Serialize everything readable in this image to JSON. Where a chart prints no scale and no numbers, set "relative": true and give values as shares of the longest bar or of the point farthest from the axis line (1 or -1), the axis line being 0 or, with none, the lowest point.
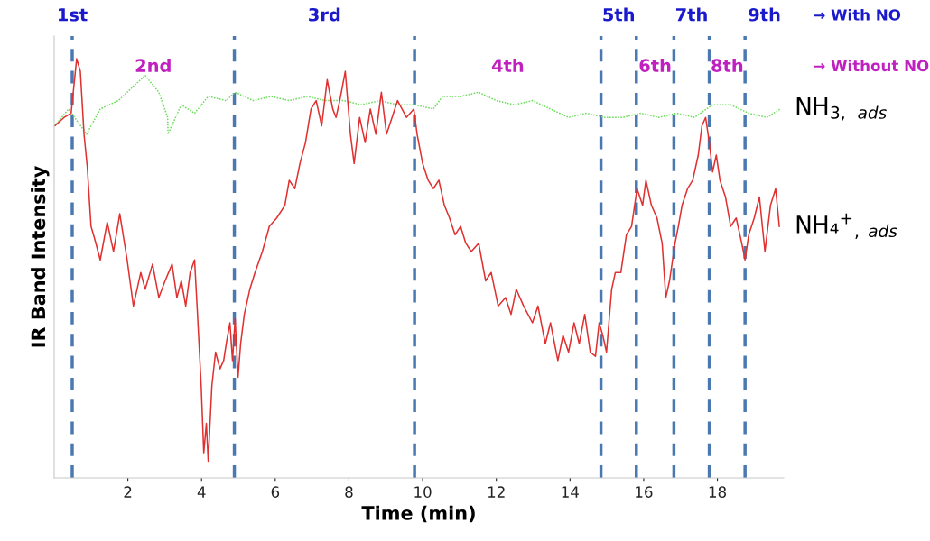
{
  "chart_data": {
    "type": "line",
    "relative": true,
    "xlabel": "Time (min)",
    "ylabel": "IR Band Intensity",
    "xlim": [
      0,
      19.8
    ],
    "xticks": [
      2,
      4,
      6,
      8,
      10,
      12,
      14,
      16,
      18
    ],
    "grid": false,
    "legend": false,
    "tick_labels": "x",
    "series": [
      {
        "name": "NH$_{3,}$ $_{ads}$",
        "color": "#66dd55",
        "line_style": "dotted",
        "x": [
          0.02,
          0.39,
          0.88,
          1.25,
          1.74,
          2.22,
          2.47,
          2.84,
          3.08,
          3.09,
          3.45,
          3.81,
          4.18,
          4.67,
          4.91,
          5.4,
          5.89,
          6.38,
          6.87,
          7.36,
          7.85,
          8.34,
          8.83,
          9.32,
          9.8,
          10.29,
          10.54,
          11.03,
          11.52,
          12.0,
          12.49,
          12.98,
          13.47,
          13.96,
          14.45,
          14.94,
          15.43,
          15.92,
          16.41,
          16.89,
          17.38,
          17.87,
          18.36,
          18.85,
          19.34,
          19.71
        ],
        "values": [
          0.84,
          0.88,
          0.82,
          0.88,
          0.9,
          0.94,
          0.96,
          0.92,
          0.86,
          0.82,
          0.89,
          0.87,
          0.91,
          0.9,
          0.92,
          0.9,
          0.91,
          0.9,
          0.91,
          0.9,
          0.9,
          0.89,
          0.9,
          0.89,
          0.89,
          0.88,
          0.91,
          0.91,
          0.92,
          0.9,
          0.89,
          0.9,
          0.88,
          0.86,
          0.87,
          0.86,
          0.86,
          0.87,
          0.86,
          0.87,
          0.86,
          0.89,
          0.89,
          0.87,
          0.86,
          0.88
        ]
      },
      {
        "name": "NH₄$^{+}$$_{,}$ $_{ads}$",
        "color": "#e03030",
        "line_style": "solid",
        "x": [
          0.02,
          0.27,
          0.46,
          0.61,
          0.71,
          0.81,
          0.9,
          1.0,
          1.1,
          1.25,
          1.44,
          1.61,
          1.78,
          1.98,
          2.15,
          2.35,
          2.47,
          2.67,
          2.84,
          3.01,
          3.2,
          3.33,
          3.45,
          3.57,
          3.69,
          3.81,
          3.89,
          3.99,
          4.06,
          4.13,
          4.18,
          4.28,
          4.38,
          4.5,
          4.6,
          4.67,
          4.77,
          4.84,
          4.91,
          4.99,
          5.06,
          5.16,
          5.31,
          5.45,
          5.65,
          5.84,
          6.04,
          6.26,
          6.38,
          6.53,
          6.67,
          6.82,
          6.97,
          7.11,
          7.26,
          7.41,
          7.56,
          7.65,
          7.75,
          7.9,
          8.04,
          8.14,
          8.29,
          8.44,
          8.58,
          8.73,
          8.88,
          9.02,
          9.17,
          9.32,
          9.56,
          9.76,
          9.85,
          10.0,
          10.15,
          10.29,
          10.44,
          10.59,
          10.73,
          10.88,
          11.03,
          11.17,
          11.32,
          11.52,
          11.71,
          11.86,
          12.05,
          12.25,
          12.4,
          12.54,
          12.74,
          12.98,
          13.13,
          13.33,
          13.47,
          13.67,
          13.81,
          13.96,
          14.11,
          14.25,
          14.4,
          14.55,
          14.69,
          14.79,
          14.89,
          14.99,
          15.13,
          15.23,
          15.38,
          15.53,
          15.67,
          15.82,
          15.97,
          16.06,
          16.21,
          16.36,
          16.5,
          16.6,
          16.7,
          16.85,
          16.94,
          17.04,
          17.19,
          17.33,
          17.48,
          17.58,
          17.68,
          17.78,
          17.87,
          17.97,
          18.07,
          18.22,
          18.36,
          18.51,
          18.66,
          18.75,
          18.85,
          19.0,
          19.14,
          19.29,
          19.44,
          19.58,
          19.68
        ],
        "values": [
          0.84,
          0.86,
          0.87,
          1.0,
          0.97,
          0.82,
          0.74,
          0.6,
          0.57,
          0.52,
          0.61,
          0.54,
          0.63,
          0.52,
          0.41,
          0.49,
          0.45,
          0.51,
          0.43,
          0.47,
          0.51,
          0.43,
          0.47,
          0.41,
          0.49,
          0.52,
          0.39,
          0.22,
          0.06,
          0.13,
          0.04,
          0.22,
          0.3,
          0.26,
          0.28,
          0.32,
          0.37,
          0.28,
          0.38,
          0.24,
          0.32,
          0.39,
          0.45,
          0.49,
          0.54,
          0.6,
          0.62,
          0.65,
          0.71,
          0.69,
          0.75,
          0.8,
          0.88,
          0.9,
          0.84,
          0.95,
          0.88,
          0.86,
          0.9,
          0.97,
          0.82,
          0.75,
          0.86,
          0.8,
          0.88,
          0.82,
          0.92,
          0.82,
          0.86,
          0.9,
          0.86,
          0.88,
          0.82,
          0.75,
          0.71,
          0.69,
          0.71,
          0.65,
          0.62,
          0.58,
          0.6,
          0.56,
          0.54,
          0.56,
          0.47,
          0.49,
          0.41,
          0.43,
          0.39,
          0.45,
          0.41,
          0.37,
          0.41,
          0.32,
          0.37,
          0.28,
          0.34,
          0.3,
          0.37,
          0.32,
          0.39,
          0.3,
          0.29,
          0.37,
          0.34,
          0.3,
          0.45,
          0.49,
          0.49,
          0.58,
          0.6,
          0.69,
          0.65,
          0.71,
          0.65,
          0.62,
          0.56,
          0.43,
          0.47,
          0.56,
          0.6,
          0.65,
          0.69,
          0.71,
          0.77,
          0.84,
          0.86,
          0.8,
          0.73,
          0.77,
          0.71,
          0.67,
          0.6,
          0.62,
          0.56,
          0.52,
          0.58,
          0.62,
          0.67,
          0.54,
          0.65,
          0.69,
          0.6
        ]
      }
    ],
    "ref_lines": [
      {
        "axis": "x",
        "value": 0.49,
        "color": "#4a78b0",
        "line_style": "dashed"
      },
      {
        "axis": "x",
        "value": 4.89,
        "color": "#4a78b0",
        "line_style": "dashed"
      },
      {
        "axis": "x",
        "value": 9.78,
        "color": "#4a78b0",
        "line_style": "dashed"
      },
      {
        "axis": "x",
        "value": 14.84,
        "color": "#4a78b0",
        "line_style": "dashed"
      },
      {
        "axis": "x",
        "value": 15.8,
        "color": "#4a78b0",
        "line_style": "dashed"
      },
      {
        "axis": "x",
        "value": 16.82,
        "color": "#4a78b0",
        "line_style": "dashed"
      },
      {
        "axis": "x",
        "value": 17.78,
        "color": "#4a78b0",
        "line_style": "dashed"
      },
      {
        "axis": "x",
        "value": 18.75,
        "color": "#4a78b0",
        "line_style": "dashed"
      }
    ],
    "annotations": [
      "1st",
      "2nd",
      "3rd",
      "4th",
      "5th",
      "6th",
      "7th",
      "8th",
      "9th",
      "→ With NO",
      "→ Without NO"
    ]
  }
}
